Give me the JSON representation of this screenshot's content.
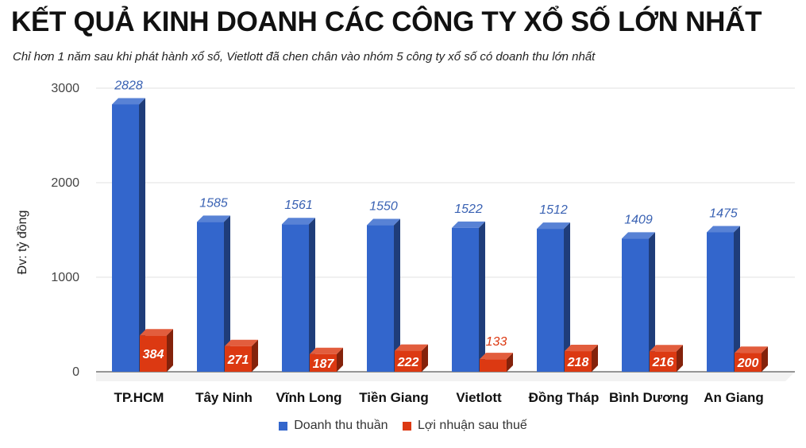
{
  "header": {
    "title": "KẾT QUẢ KINH DOANH CÁC CÔNG TY XỔ SỐ LỚN NHẤT",
    "subtitle": "Chỉ hơn 1 năm sau khi phát hành xổ số, Vietlott đã chen chân vào nhóm 5 công ty xổ số có doanh thu lớn nhất"
  },
  "chart_data": {
    "type": "bar",
    "ylabel": "Đv: tỷ đồng",
    "ylim": [
      0,
      3000
    ],
    "yticks": [
      0,
      1000,
      2000,
      3000
    ],
    "grid": true,
    "legend_position": "bottom",
    "categories": [
      "TP.HCM",
      "Tây Ninh",
      "Vĩnh Long",
      "Tiền Giang",
      "Vietlott",
      "Đồng Tháp",
      "Bình Dương",
      "An Giang"
    ],
    "series": [
      {
        "name": "Doanh thu thuần",
        "color": "#3366cc",
        "values": [
          2828,
          1585,
          1561,
          1550,
          1522,
          1512,
          1409,
          1475
        ]
      },
      {
        "name": "Lợi nhuận sau thuế",
        "color": "#dc3912",
        "values": [
          384,
          271,
          187,
          222,
          133,
          218,
          216,
          200
        ]
      }
    ]
  }
}
